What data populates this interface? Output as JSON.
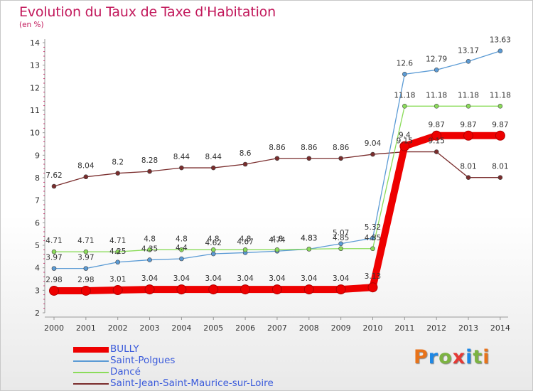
{
  "title": "Evolution du Taux de Taxe d'Habitation",
  "subtitle": "(en %)",
  "logo": {
    "letters": [
      "P",
      "r",
      "o",
      "x",
      "i",
      "t",
      "i"
    ],
    "colors": [
      "#e8731a",
      "#1e88e5",
      "#7cb342",
      "#e53935",
      "#1e88e5",
      "#7cb342",
      "#e8731a"
    ]
  },
  "chart_data": {
    "type": "line",
    "x": [
      "2000",
      "2001",
      "2002",
      "2003",
      "2004",
      "2005",
      "2006",
      "2007",
      "2008",
      "2009",
      "2010",
      "2011",
      "2012",
      "2013",
      "2014"
    ],
    "ylim": [
      2,
      14
    ],
    "yticks": [
      "2",
      "3",
      "4",
      "5",
      "6",
      "7",
      "8",
      "9",
      "10",
      "11",
      "12",
      "13",
      "14"
    ],
    "grid": false,
    "legend_position": "bottom-left",
    "series": [
      {
        "name": "BULLY",
        "color": "#ee0000",
        "values": [
          2.98,
          2.98,
          3.01,
          3.04,
          3.04,
          3.04,
          3.04,
          3.04,
          3.04,
          3.04,
          3.13,
          9.4,
          9.87,
          9.87,
          9.87
        ],
        "labels": [
          "2.98",
          "2.98",
          "3.01",
          "3.04",
          "3.04",
          "3.04",
          "3.04",
          "3.04",
          "3.04",
          "3.04",
          "3.13",
          "9.4",
          "9.87",
          "9.87",
          "9.87"
        ]
      },
      {
        "name": "Saint-Polgues",
        "color": "#5b9bd5",
        "values": [
          3.97,
          3.97,
          4.25,
          4.35,
          4.4,
          4.62,
          4.67,
          4.74,
          4.83,
          5.07,
          5.32,
          12.6,
          12.79,
          13.17,
          13.63
        ],
        "labels": [
          "3.97",
          "3.97",
          "4.25",
          "4.35",
          "4.4",
          "4.62",
          "4.67",
          "4.74",
          "4.83",
          "5.07",
          "5.32",
          "12.6",
          "12.79",
          "13.17",
          "13.63"
        ]
      },
      {
        "name": "Dancé",
        "color": "#8bdc5a",
        "values": [
          4.71,
          4.71,
          4.71,
          4.8,
          4.8,
          4.8,
          4.8,
          4.8,
          4.83,
          4.85,
          4.85,
          11.18,
          11.18,
          11.18,
          11.18
        ],
        "labels": [
          "4.71",
          "4.71",
          "4.71",
          "4.8",
          "4.8",
          "4.8",
          "4.8",
          "4.8",
          "4.83",
          "4.85",
          "4.85",
          "11.18",
          "11.18",
          "11.18",
          "11.18"
        ]
      },
      {
        "name": "Saint-Jean-Saint-Maurice-sur-Loire",
        "color": "#7a2d2d",
        "values": [
          7.62,
          8.04,
          8.2,
          8.28,
          8.44,
          8.44,
          8.6,
          8.86,
          8.86,
          8.86,
          9.04,
          9.15,
          9.15,
          8.01,
          8.01
        ],
        "labels": [
          "7.62",
          "8.04",
          "8.2",
          "8.28",
          "8.44",
          "8.44",
          "8.6",
          "8.86",
          "8.86",
          "8.86",
          "9.04",
          "9.15",
          "9.15",
          "8.01",
          "8.01"
        ]
      }
    ]
  }
}
